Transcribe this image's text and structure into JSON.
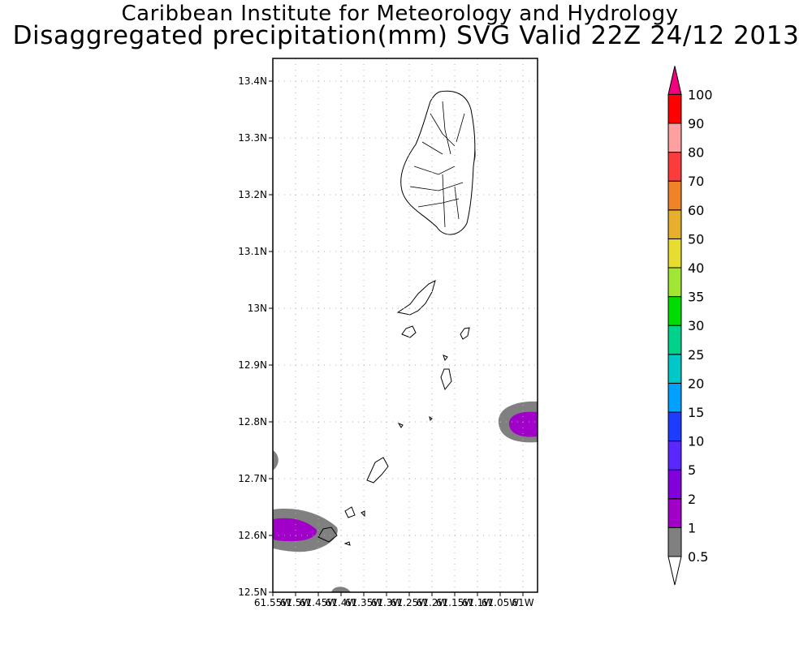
{
  "title": {
    "line1": "Caribbean Institute for Meteorology and Hydrology",
    "line2": "Disaggregated precipitation(mm) SVG Valid 22Z 24/12 2013"
  },
  "map": {
    "lat_range": [
      12.5,
      13.44
    ],
    "lon_range": [
      -61.55,
      -60.98
    ],
    "lat_ticks": [
      "13.4N",
      "13.3N",
      "13.2N",
      "13.1N",
      "13N",
      "12.9N",
      "12.8N",
      "12.7N",
      "12.6N",
      "12.5N"
    ],
    "lon_ticks": [
      "61.55W",
      "61.5W",
      "61.45W",
      "61.4W",
      "61.35W",
      "61.3W",
      "61.25W",
      "61.2W",
      "61.15W",
      "61.1W",
      "61.05W",
      "61W"
    ],
    "grid": "dotted"
  },
  "colorbar": {
    "labels": [
      "0.5",
      "1",
      "2",
      "5",
      "10",
      "15",
      "20",
      "25",
      "30",
      "35",
      "40",
      "50",
      "60",
      "70",
      "80",
      "90",
      "100"
    ],
    "colors": [
      "#808080",
      "#a000c8",
      "#8200dc",
      "#5a28ff",
      "#1e3cff",
      "#00a0ff",
      "#00c8c8",
      "#00d28c",
      "#00dc00",
      "#a0e632",
      "#e6dc32",
      "#e6af2d",
      "#f08228",
      "#fa3c3c",
      "#ffa0a0",
      "#ff0000",
      "#e61e5a"
    ],
    "over_color": "#f0007f",
    "under_color": "#ffffff"
  },
  "legend": {
    "colors": {
      "rain_0_5_to_1": "#808080",
      "rain_1_to_2": "#a000c8",
      "rain_2_to_5": "#8200dc"
    }
  }
}
